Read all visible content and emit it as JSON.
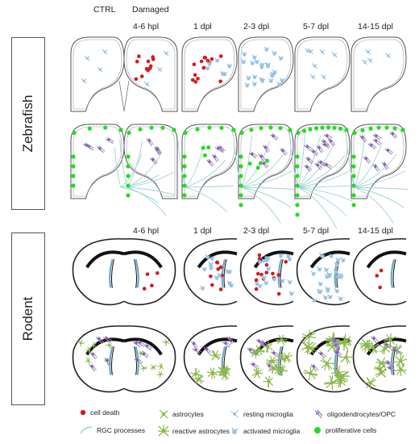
{
  "header": {
    "ctrl": "CTRL",
    "damaged": "Damaged"
  },
  "timepoints": [
    "4-6 hpl",
    "1 dpl",
    "2-3 dpl",
    "5-7 dpl",
    "14-15 dpl"
  ],
  "species": {
    "zebrafish": "Zebrafish",
    "rodent": "Rodent"
  },
  "legend": {
    "cell_death": "cell death",
    "astrocytes": "astrocytes",
    "resting_microglia": "resting microglia",
    "oligodendrocytes": "oligodendrocytes/OPC",
    "rgc_processes": "RGC processes",
    "reactive_astrocytes": "reactive astrocytes",
    "activated_microglia": "activated microglia",
    "proliferative_cells": "proliferative cells"
  },
  "colors": {
    "cell_death": "#d7191c",
    "proliferative": "#22dd22",
    "microglia": "#9cc4e4",
    "oligodendrocyte": "#a58bc4",
    "astrocyte": "#8ab84a",
    "rgc": "#9fd3d3",
    "outline": "#333333"
  }
}
